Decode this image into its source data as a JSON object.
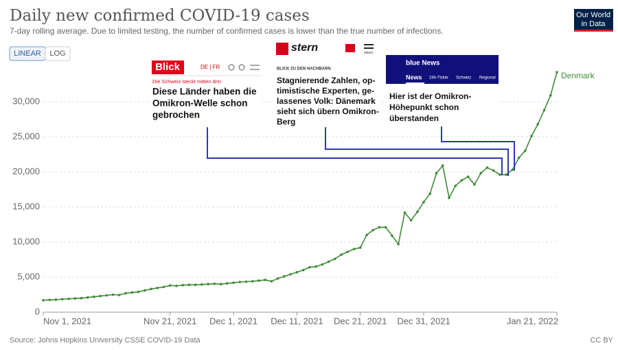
{
  "chart_data": {
    "type": "line",
    "title": "Daily new confirmed COVID-19 cases",
    "subtitle": "7-day rolling average. Due to limited testing, the number of confirmed cases is lower than the true number of infections.",
    "scale_buttons": [
      "LINEAR",
      "LOG"
    ],
    "logo": [
      "Our World",
      "in Data"
    ],
    "source": "Source: Johns Hopkins University CSSE COVID-19 Data",
    "license": "CC BY",
    "xlim": [
      "2021-11-01",
      "2022-01-21"
    ],
    "xticks": [
      {
        "value": "2021-11-01",
        "label": "Nov 1, 2021"
      },
      {
        "value": "2021-11-21",
        "label": "Nov 21, 2021"
      },
      {
        "value": "2021-12-01",
        "label": "Dec 1, 2021"
      },
      {
        "value": "2021-12-11",
        "label": "Dec 11, 2021"
      },
      {
        "value": "2021-12-21",
        "label": "Dec 21, 2021"
      },
      {
        "value": "2021-12-31",
        "label": "Dec 31, 2021"
      },
      {
        "value": "2022-01-21",
        "label": "Jan 21, 2022"
      }
    ],
    "ylim": [
      0,
      34500
    ],
    "yticks": [
      0,
      {
        "value": 5000,
        "label": "5,000"
      },
      {
        "value": 10000,
        "label": "10,000"
      },
      {
        "value": 15000,
        "label": "15,000"
      },
      {
        "value": 20000,
        "label": "20,000"
      },
      {
        "value": 25000,
        "label": "25,000"
      },
      {
        "value": 30000,
        "label": "30,000"
      }
    ],
    "grid": true,
    "x": [
      "2021-11-01",
      "2021-11-02",
      "2021-11-03",
      "2021-11-04",
      "2021-11-05",
      "2021-11-06",
      "2021-11-07",
      "2021-11-08",
      "2021-11-09",
      "2021-11-10",
      "2021-11-11",
      "2021-11-12",
      "2021-11-13",
      "2021-11-14",
      "2021-11-15",
      "2021-11-16",
      "2021-11-17",
      "2021-11-18",
      "2021-11-19",
      "2021-11-20",
      "2021-11-21",
      "2021-11-22",
      "2021-11-23",
      "2021-11-24",
      "2021-11-25",
      "2021-11-26",
      "2021-11-27",
      "2021-11-28",
      "2021-11-29",
      "2021-11-30",
      "2021-12-01",
      "2021-12-02",
      "2021-12-03",
      "2021-12-04",
      "2021-12-05",
      "2021-12-06",
      "2021-12-07",
      "2021-12-08",
      "2021-12-09",
      "2021-12-10",
      "2021-12-11",
      "2021-12-12",
      "2021-12-13",
      "2021-12-14",
      "2021-12-15",
      "2021-12-16",
      "2021-12-17",
      "2021-12-18",
      "2021-12-19",
      "2021-12-20",
      "2021-12-21",
      "2021-12-22",
      "2021-12-23",
      "2021-12-24",
      "2021-12-25",
      "2021-12-26",
      "2021-12-27",
      "2021-12-28",
      "2021-12-29",
      "2021-12-30",
      "2021-12-31",
      "2022-01-01",
      "2022-01-02",
      "2022-01-03",
      "2022-01-04",
      "2022-01-05",
      "2022-01-06",
      "2022-01-07",
      "2022-01-08",
      "2022-01-09",
      "2022-01-10",
      "2022-01-11",
      "2022-01-12",
      "2022-01-13",
      "2022-01-14",
      "2022-01-15",
      "2022-01-16",
      "2022-01-17",
      "2022-01-18",
      "2022-01-19",
      "2022-01-20",
      "2022-01-21"
    ],
    "series": [
      {
        "name": "Denmark",
        "color": "#3f8b36",
        "values": [
          1700,
          1750,
          1780,
          1850,
          1900,
          1950,
          2000,
          2100,
          2200,
          2300,
          2400,
          2500,
          2450,
          2700,
          2800,
          2900,
          3100,
          3300,
          3450,
          3600,
          3800,
          3750,
          3850,
          3900,
          3900,
          3950,
          4000,
          4050,
          4000,
          4100,
          4200,
          4300,
          4350,
          4400,
          4500,
          4600,
          4400,
          4800,
          5100,
          5400,
          5700,
          6000,
          6400,
          6500,
          6800,
          7200,
          7600,
          8200,
          8600,
          9000,
          9200,
          11000,
          11700,
          12100,
          12100,
          10900,
          9700,
          14200,
          13100,
          14300,
          15700,
          16900,
          19800,
          20900,
          16300,
          18000,
          18800,
          19300,
          18200,
          19800,
          20600,
          20200,
          19600,
          19600,
          20300,
          22000,
          23000,
          25100,
          26800,
          28800,
          30900,
          34200
        ]
      }
    ]
  },
  "annotations": [
    {
      "brand": "Blick",
      "nav": "DE | FR",
      "kicker": "Die Schweiz steckt mitten drin",
      "lines": [
        "Diese Länder haben die",
        "Omikron-Welle schon",
        "gebrochen"
      ]
    },
    {
      "brand": "stern",
      "nav": "MENÜ",
      "kicker": "BLICK ZU DEN NACHBARN",
      "lines": [
        "Stagnierende Zahlen, op-",
        "timistische Experten, ge-",
        "lassenes Volk: Dänemark",
        "sieht sich übern Omikron-",
        "Berg"
      ]
    },
    {
      "brand": "blue News",
      "nav": [
        "News",
        "24h-Ticker",
        "Schweiz",
        "Regional"
      ],
      "lines": [
        "Hier ist der Omikron-",
        "Höhepunkt schon",
        "überstanden"
      ]
    }
  ]
}
